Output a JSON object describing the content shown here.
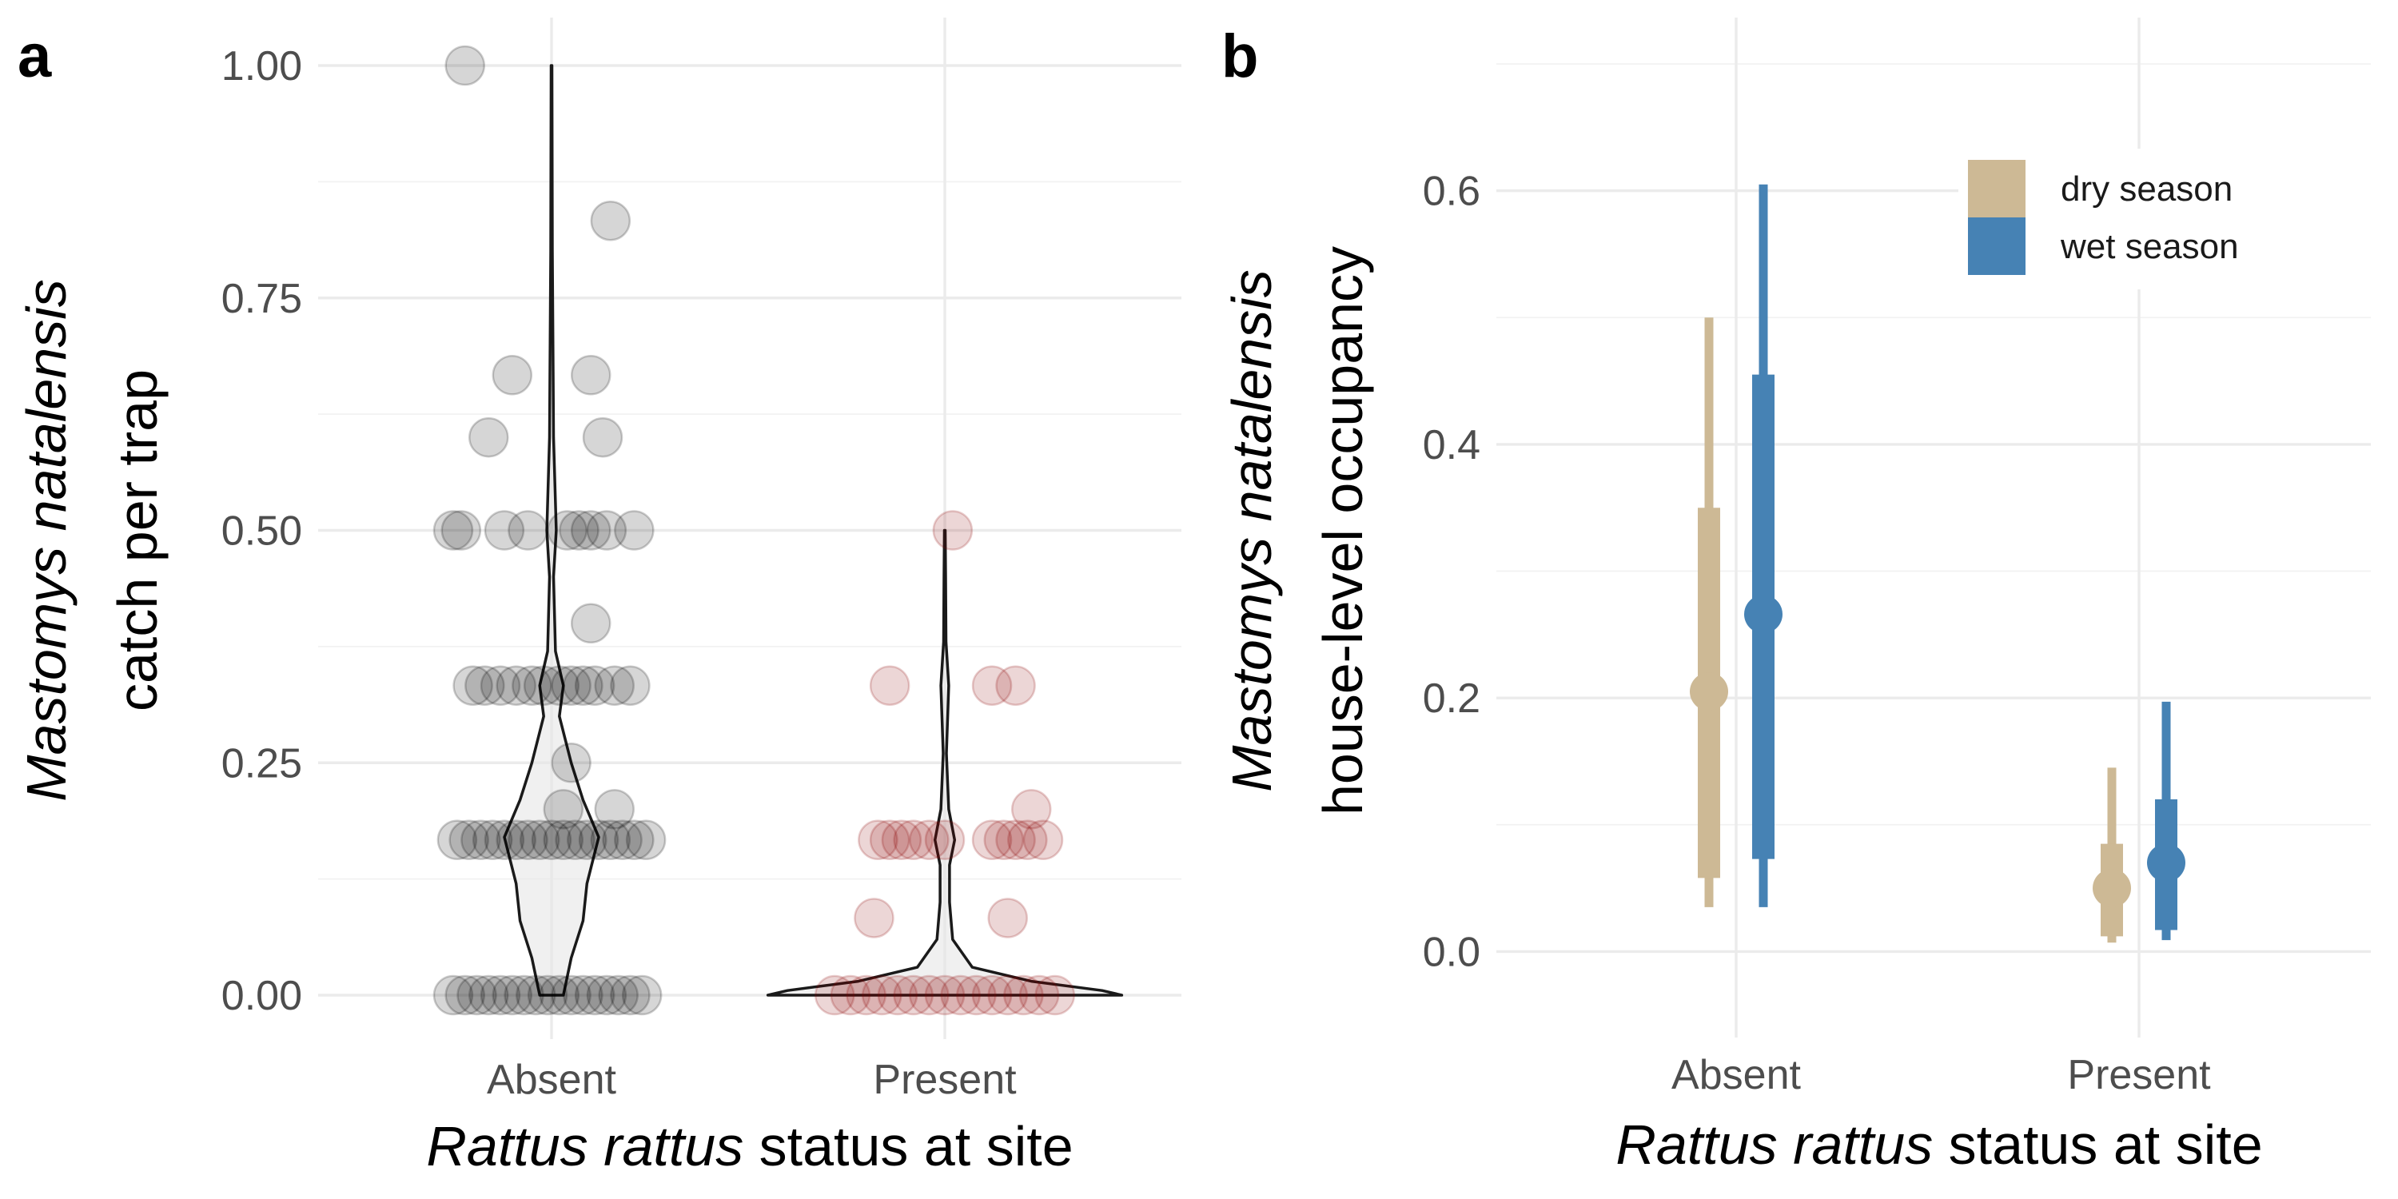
{
  "chart_data": [
    {
      "panel": "a",
      "type": "scatter",
      "subtype": "violin-with-jittered-points",
      "categories": [
        "Absent",
        "Present"
      ],
      "ylabel_italic": "Mastomys natalensis",
      "ylabel_plain": "catch per trap",
      "xlabel_italic": "Rattus rattus",
      "xlabel_plain": "status at site",
      "ylim": [
        0,
        1
      ],
      "yticks": [
        0,
        0.25,
        0.5,
        0.75,
        1
      ],
      "ytick_labels": [
        "0.00",
        "0.25",
        "0.50",
        "0.75",
        "1.00"
      ],
      "colors": {
        "Absent": "#000000",
        "Present": "#8b0000",
        "violin_fill": "#e6e6e6",
        "violin_stroke": "#1a1a1a"
      },
      "series": [
        {
          "category": "Absent",
          "points": [
            {
              "dx": -0.22,
              "y": 1.0
            },
            {
              "dx": 0.15,
              "y": 0.833
            },
            {
              "dx": -0.1,
              "y": 0.667
            },
            {
              "dx": 0.1,
              "y": 0.667
            },
            {
              "dx": -0.16,
              "y": 0.6
            },
            {
              "dx": 0.13,
              "y": 0.6
            },
            {
              "dx": -0.25,
              "y": 0.5
            },
            {
              "dx": -0.23,
              "y": 0.5
            },
            {
              "dx": -0.12,
              "y": 0.5
            },
            {
              "dx": -0.06,
              "y": 0.5
            },
            {
              "dx": 0.04,
              "y": 0.5
            },
            {
              "dx": 0.07,
              "y": 0.5
            },
            {
              "dx": 0.1,
              "y": 0.5
            },
            {
              "dx": 0.14,
              "y": 0.5
            },
            {
              "dx": 0.21,
              "y": 0.5
            },
            {
              "dx": 0.1,
              "y": 0.4
            },
            {
              "dx": -0.2,
              "y": 0.333
            },
            {
              "dx": -0.17,
              "y": 0.333
            },
            {
              "dx": -0.13,
              "y": 0.333
            },
            {
              "dx": -0.09,
              "y": 0.333
            },
            {
              "dx": -0.05,
              "y": 0.333
            },
            {
              "dx": -0.02,
              "y": 0.333
            },
            {
              "dx": 0.02,
              "y": 0.333
            },
            {
              "dx": 0.05,
              "y": 0.333
            },
            {
              "dx": 0.08,
              "y": 0.333
            },
            {
              "dx": 0.11,
              "y": 0.333
            },
            {
              "dx": 0.16,
              "y": 0.333
            },
            {
              "dx": 0.2,
              "y": 0.333
            },
            {
              "dx": 0.05,
              "y": 0.25
            },
            {
              "dx": 0.03,
              "y": 0.2
            },
            {
              "dx": 0.16,
              "y": 0.2
            },
            {
              "dx": -0.24,
              "y": 0.167
            },
            {
              "dx": -0.21,
              "y": 0.167
            },
            {
              "dx": -0.18,
              "y": 0.167
            },
            {
              "dx": -0.15,
              "y": 0.167
            },
            {
              "dx": -0.12,
              "y": 0.167
            },
            {
              "dx": -0.09,
              "y": 0.167
            },
            {
              "dx": -0.06,
              "y": 0.167
            },
            {
              "dx": -0.03,
              "y": 0.167
            },
            {
              "dx": 0.0,
              "y": 0.167
            },
            {
              "dx": 0.03,
              "y": 0.167
            },
            {
              "dx": 0.06,
              "y": 0.167
            },
            {
              "dx": 0.09,
              "y": 0.167
            },
            {
              "dx": 0.12,
              "y": 0.167
            },
            {
              "dx": 0.15,
              "y": 0.167
            },
            {
              "dx": 0.18,
              "y": 0.167
            },
            {
              "dx": 0.21,
              "y": 0.167
            },
            {
              "dx": 0.24,
              "y": 0.167
            },
            {
              "dx": -0.25,
              "y": 0.0
            },
            {
              "dx": -0.22,
              "y": 0.0
            },
            {
              "dx": -0.19,
              "y": 0.0
            },
            {
              "dx": -0.16,
              "y": 0.0
            },
            {
              "dx": -0.13,
              "y": 0.0
            },
            {
              "dx": -0.1,
              "y": 0.0
            },
            {
              "dx": -0.07,
              "y": 0.0
            },
            {
              "dx": -0.04,
              "y": 0.0
            },
            {
              "dx": -0.01,
              "y": 0.0
            },
            {
              "dx": 0.02,
              "y": 0.0
            },
            {
              "dx": 0.05,
              "y": 0.0
            },
            {
              "dx": 0.08,
              "y": 0.0
            },
            {
              "dx": 0.11,
              "y": 0.0
            },
            {
              "dx": 0.14,
              "y": 0.0
            },
            {
              "dx": 0.17,
              "y": 0.0
            },
            {
              "dx": 0.2,
              "y": 0.0
            },
            {
              "dx": 0.23,
              "y": 0.0
            }
          ],
          "violin": [
            [
              0,
              0.03
            ],
            [
              0.04,
              0.05
            ],
            [
              0.08,
              0.08
            ],
            [
              0.12,
              0.09
            ],
            [
              0.17,
              0.12
            ],
            [
              0.21,
              0.08
            ],
            [
              0.25,
              0.05
            ],
            [
              0.3,
              0.02
            ],
            [
              0.333,
              0.03
            ],
            [
              0.37,
              0.01
            ],
            [
              0.45,
              0.005
            ],
            [
              0.5,
              0.012
            ],
            [
              0.6,
              0.005
            ],
            [
              0.67,
              0.004
            ],
            [
              0.8,
              0.002
            ],
            [
              1.0,
              0.001
            ]
          ]
        },
        {
          "category": "Present",
          "points": [
            {
              "dx": 0.02,
              "y": 0.5
            },
            {
              "dx": -0.14,
              "y": 0.333
            },
            {
              "dx": 0.12,
              "y": 0.333
            },
            {
              "dx": 0.18,
              "y": 0.333
            },
            {
              "dx": 0.22,
              "y": 0.2
            },
            {
              "dx": -0.17,
              "y": 0.167
            },
            {
              "dx": -0.14,
              "y": 0.167
            },
            {
              "dx": -0.11,
              "y": 0.167
            },
            {
              "dx": -0.08,
              "y": 0.167
            },
            {
              "dx": -0.04,
              "y": 0.167
            },
            {
              "dx": 0.0,
              "y": 0.167
            },
            {
              "dx": 0.12,
              "y": 0.167
            },
            {
              "dx": 0.15,
              "y": 0.167
            },
            {
              "dx": 0.18,
              "y": 0.167
            },
            {
              "dx": 0.21,
              "y": 0.167
            },
            {
              "dx": 0.25,
              "y": 0.167
            },
            {
              "dx": -0.18,
              "y": 0.083
            },
            {
              "dx": 0.16,
              "y": 0.083
            },
            {
              "dx": -0.28,
              "y": 0.0
            },
            {
              "dx": -0.24,
              "y": 0.0
            },
            {
              "dx": -0.2,
              "y": 0.0
            },
            {
              "dx": -0.16,
              "y": 0.0
            },
            {
              "dx": -0.12,
              "y": 0.0
            },
            {
              "dx": -0.08,
              "y": 0.0
            },
            {
              "dx": -0.04,
              "y": 0.0
            },
            {
              "dx": 0.0,
              "y": 0.0
            },
            {
              "dx": 0.04,
              "y": 0.0
            },
            {
              "dx": 0.08,
              "y": 0.0
            },
            {
              "dx": 0.12,
              "y": 0.0
            },
            {
              "dx": 0.16,
              "y": 0.0
            },
            {
              "dx": 0.2,
              "y": 0.0
            },
            {
              "dx": 0.24,
              "y": 0.0
            },
            {
              "dx": 0.28,
              "y": 0.0
            }
          ],
          "violin": [
            [
              0,
              0.45
            ],
            [
              0.005,
              0.4
            ],
            [
              0.015,
              0.22
            ],
            [
              0.03,
              0.07
            ],
            [
              0.06,
              0.02
            ],
            [
              0.1,
              0.012
            ],
            [
              0.14,
              0.012
            ],
            [
              0.167,
              0.025
            ],
            [
              0.2,
              0.01
            ],
            [
              0.26,
              0.004
            ],
            [
              0.333,
              0.01
            ],
            [
              0.38,
              0.003
            ],
            [
              0.45,
              0.002
            ],
            [
              0.5,
              0.001
            ]
          ]
        }
      ]
    },
    {
      "panel": "b",
      "type": "scatter",
      "subtype": "point-range",
      "categories": [
        "Absent",
        "Present"
      ],
      "ylabel_italic": "Mastomys natalensis",
      "ylabel_plain": "house-level occupancy",
      "xlabel_italic": "Rattus rattus",
      "xlabel_plain": "status at site",
      "ylim": [
        -0.03,
        0.7
      ],
      "yticks": [
        0,
        0.2,
        0.4,
        0.6
      ],
      "ytick_labels": [
        "0.0",
        "0.2",
        "0.4",
        "0.6"
      ],
      "legend": {
        "position": "top-right",
        "entries": [
          "dry season",
          "wet season"
        ]
      },
      "colors": {
        "dry season": "#cdb995",
        "wet season": "#4682b4"
      },
      "series": [
        {
          "name": "dry season",
          "values": [
            {
              "category": "Absent",
              "median": 0.205,
              "inner": [
                0.058,
                0.35
              ],
              "outer": [
                0.035,
                0.5
              ]
            },
            {
              "category": "Present",
              "median": 0.05,
              "inner": [
                0.012,
                0.085
              ],
              "outer": [
                0.007,
                0.145
              ]
            }
          ]
        },
        {
          "name": "wet season",
          "values": [
            {
              "category": "Absent",
              "median": 0.266,
              "inner": [
                0.073,
                0.455
              ],
              "outer": [
                0.035,
                0.605
              ]
            },
            {
              "category": "Present",
              "median": 0.07,
              "inner": [
                0.017,
                0.12
              ],
              "outer": [
                0.009,
                0.197
              ]
            }
          ]
        }
      ]
    }
  ]
}
